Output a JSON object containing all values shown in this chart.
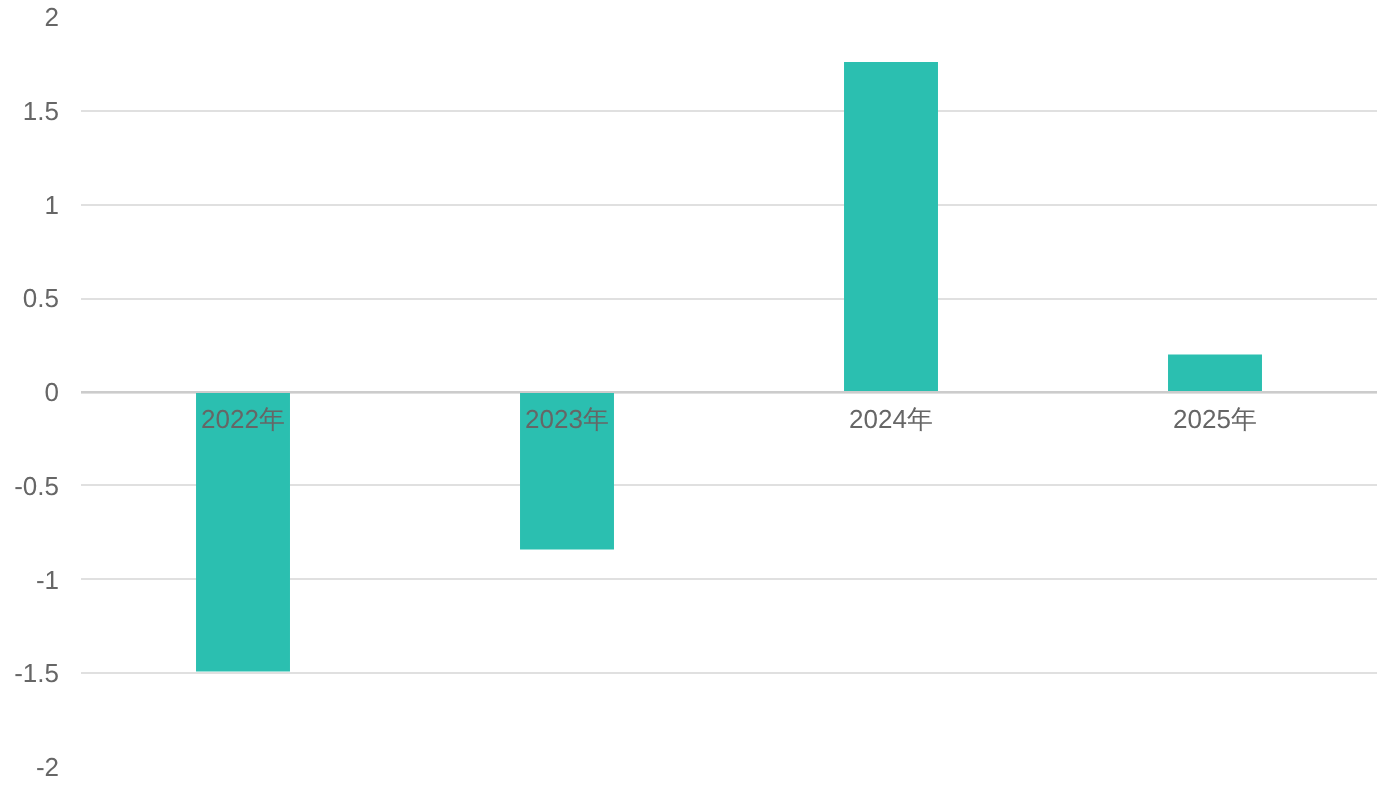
{
  "chart_data": {
    "type": "bar",
    "categories": [
      "2022年",
      "2023年",
      "2024年",
      "2025年"
    ],
    "values": [
      -1.49,
      -0.84,
      1.76,
      0.2
    ],
    "color": "#2bbfb0",
    "ylim": [
      -2,
      2
    ],
    "yticks": [
      -2,
      -1.5,
      -1,
      -0.5,
      0,
      0.5,
      1,
      1.5,
      2
    ],
    "grid": "y"
  }
}
